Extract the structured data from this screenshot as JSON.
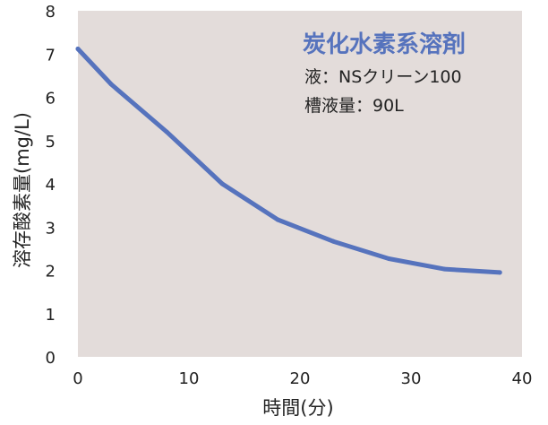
{
  "chart_data": {
    "type": "line",
    "title": "炭化水素系溶剤",
    "annotations": [
      "液：NSクリーン100",
      "槽液量：90L"
    ],
    "xlabel": "時間(分)",
    "ylabel": "溶存酸素量(mg/L)",
    "xlim": [
      0,
      40
    ],
    "ylim": [
      0,
      8
    ],
    "x_ticks": [
      "0",
      "10",
      "20",
      "30",
      "40"
    ],
    "y_ticks": [
      "0",
      "1",
      "2",
      "3",
      "4",
      "5",
      "6",
      "7",
      "8"
    ],
    "grid": false,
    "series": [
      {
        "x": [
          0,
          3,
          8,
          13,
          18,
          23,
          28,
          33,
          38
        ],
        "values": [
          7.12,
          6.3,
          5.2,
          4.0,
          3.17,
          2.67,
          2.27,
          2.03,
          1.95
        ]
      }
    ]
  },
  "colors": {
    "plot_background": "#e3dcda",
    "line": "#5673bd",
    "title": "#5673bd",
    "text": "#222222"
  }
}
